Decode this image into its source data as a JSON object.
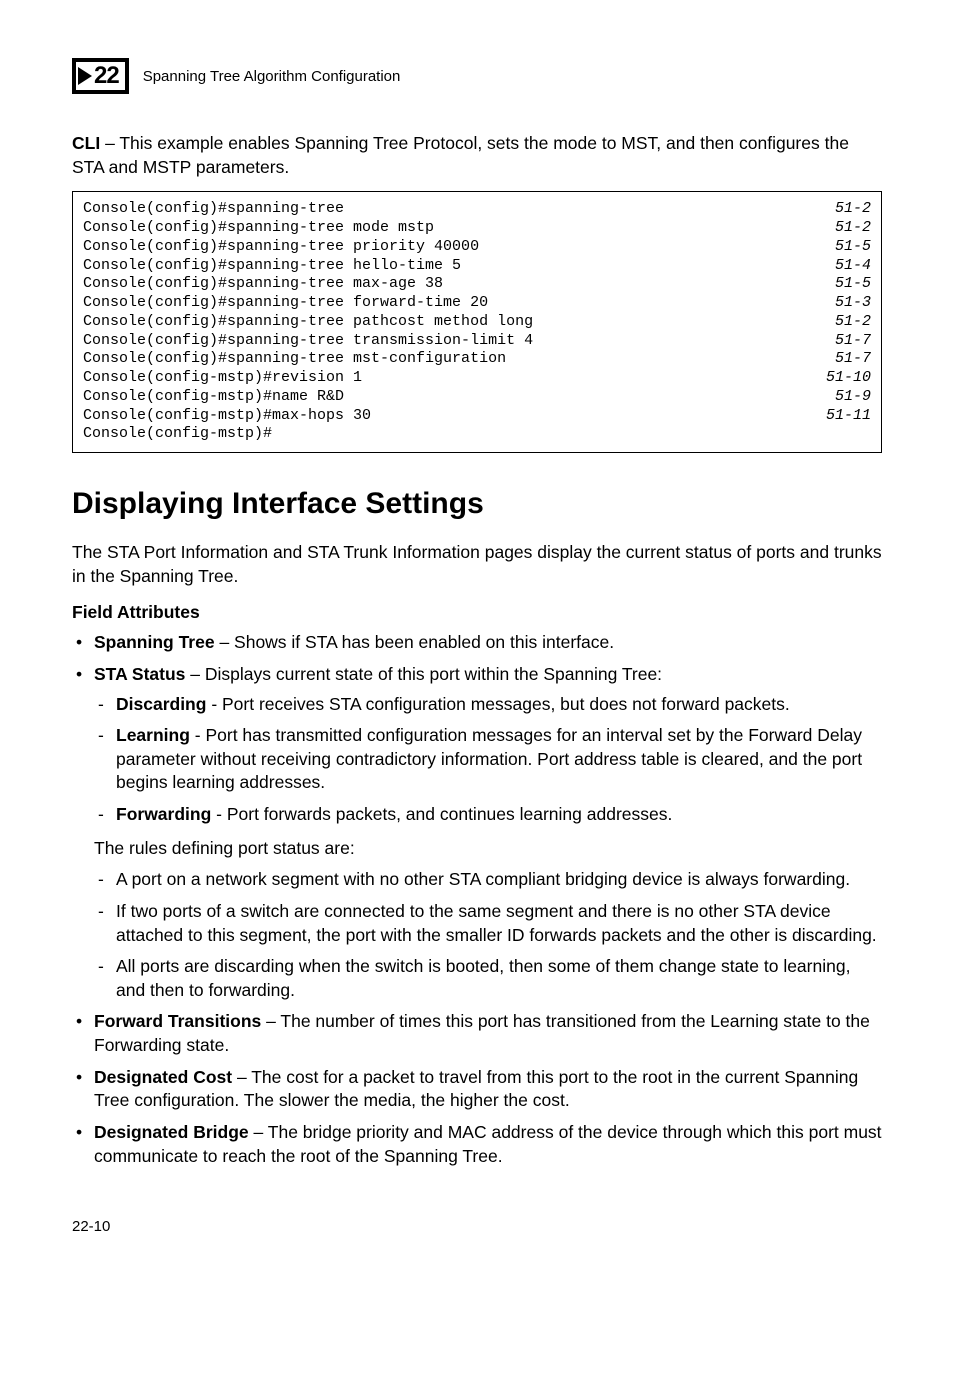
{
  "header": {
    "page_icon_num": "22",
    "chapter_title": "Spanning Tree Algorithm Configuration"
  },
  "intro": {
    "cli_label": "CLI",
    "cli_text": " – This example enables Spanning Tree Protocol, sets the mode to MST, and then configures the STA and MSTP parameters."
  },
  "code": {
    "lines": [
      {
        "cmd": "Console(config)#spanning-tree",
        "ref": "51-2"
      },
      {
        "cmd": "Console(config)#spanning-tree mode mstp",
        "ref": "51-2"
      },
      {
        "cmd": "Console(config)#spanning-tree priority 40000",
        "ref": "51-5"
      },
      {
        "cmd": "Console(config)#spanning-tree hello-time 5",
        "ref": "51-4"
      },
      {
        "cmd": "Console(config)#spanning-tree max-age 38",
        "ref": "51-5"
      },
      {
        "cmd": "Console(config)#spanning-tree forward-time 20",
        "ref": "51-3"
      },
      {
        "cmd": "Console(config)#spanning-tree pathcost method long",
        "ref": "51-2"
      },
      {
        "cmd": "Console(config)#spanning-tree transmission-limit 4",
        "ref": "51-7"
      },
      {
        "cmd": "Console(config)#spanning-tree mst-configuration",
        "ref": "51-7"
      },
      {
        "cmd": "Console(config-mstp)#revision 1",
        "ref": "51-10"
      },
      {
        "cmd": "Console(config-mstp)#name R&D",
        "ref": "51-9"
      },
      {
        "cmd": "Console(config-mstp)#max-hops 30",
        "ref": "51-11"
      },
      {
        "cmd": "Console(config-mstp)#",
        "ref": ""
      }
    ]
  },
  "section": {
    "title": "Displaying Interface Settings",
    "intro": "The STA Port Information and STA Trunk Information pages display the current status of ports and trunks in the Spanning Tree.",
    "field_attributes_label": "Field Attributes"
  },
  "bullets": {
    "b1_term": "Spanning Tree",
    "b1_text": " – Shows if STA has been enabled on this interface.",
    "b2_term": "STA Status",
    "b2_text": " – Displays current state of this port within the Spanning Tree:",
    "b2_sub1_term": "Discarding",
    "b2_sub1_text": " - Port receives STA configuration messages, but does not forward packets.",
    "b2_sub2_term": "Learning",
    "b2_sub2_text": " - Port has transmitted configuration messages for an interval set by the Forward Delay parameter without receiving contradictory information. Port address table is cleared, and the port begins learning addresses.",
    "b2_sub3_term": "Forwarding",
    "b2_sub3_text": " - Port forwards packets, and continues learning addresses.",
    "rules_intro": "The rules defining port status are:",
    "rule1": "A port on a network segment with no other STA compliant bridging device is always forwarding.",
    "rule2": "If two ports of a switch are connected to the same segment and there is no other STA device attached to this segment, the port with the smaller ID forwards packets and the other is discarding.",
    "rule3": "All ports are discarding when the switch is booted, then some of them change state to learning, and then to forwarding.",
    "b3_term": "Forward Transitions",
    "b3_text": " – The number of times this port has transitioned from the Learning state to the Forwarding state.",
    "b4_term": "Designated Cost",
    "b4_text": " – The cost for a packet to travel from this port to the root in the current Spanning Tree configuration. The slower the media, the higher the cost.",
    "b5_term": "Designated Bridge",
    "b5_text": " – The bridge priority and MAC address of the device through which this port must communicate to reach the root of the Spanning Tree."
  },
  "footer": {
    "page_num": "22-10"
  }
}
